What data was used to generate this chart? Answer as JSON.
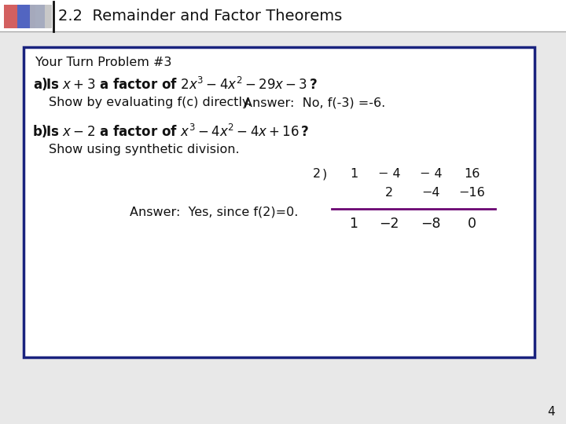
{
  "title": "2.2  Remainder and Factor Theorems",
  "bg_color": "#f0f0f0",
  "box_border_color": "#1a237e",
  "page_number": "4",
  "subtitle": "Your Turn Problem #3",
  "part_a_show": "Show by evaluating f(c) directly.",
  "part_a_answer": "Answer:  No, f(-3) =-6.",
  "part_b_show": "Show using synthetic division.",
  "part_b_answer": "Answer:  Yes, since f(2)=0.",
  "synth_divisor": "2",
  "synth_row1": [
    "1",
    "− 4",
    "− 4",
    "16"
  ],
  "synth_row2": [
    "",
    "2",
    "−4",
    "−16"
  ],
  "synth_row3": [
    "1",
    "−2",
    "−8",
    "0"
  ],
  "title_font_size": 14,
  "body_font_size": 11.5,
  "synth_line_color": "#6a0572"
}
